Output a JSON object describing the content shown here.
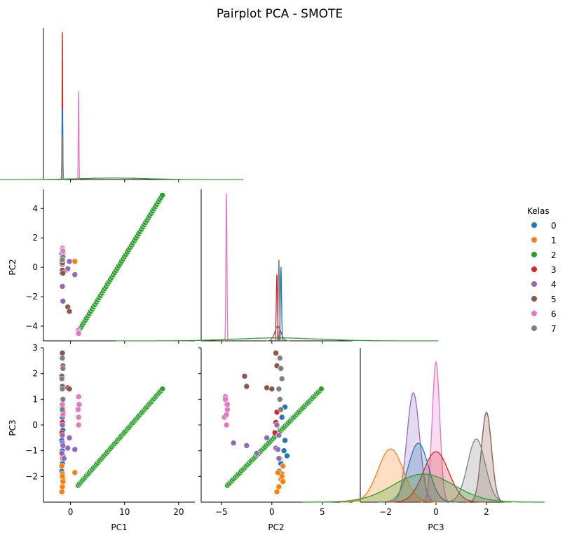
{
  "chart_data": {
    "type": "scatter",
    "title": "Pairplot PCA - SMOTE",
    "variables": [
      "PC1",
      "PC2",
      "PC3"
    ],
    "legend": {
      "title": "Kelas",
      "placement": "right",
      "classes": [
        {
          "label": "0",
          "color": "#1f77b4"
        },
        {
          "label": "1",
          "color": "#ff7f0e"
        },
        {
          "label": "2",
          "color": "#2ca02c"
        },
        {
          "label": "3",
          "color": "#d62728"
        },
        {
          "label": "4",
          "color": "#9467bd"
        },
        {
          "label": "5",
          "color": "#8c564b"
        },
        {
          "label": "6",
          "color": "#e377c2"
        },
        {
          "label": "7",
          "color": "#7f7f7f"
        }
      ]
    },
    "ranges": {
      "PC1": [
        -5,
        23
      ],
      "PC2": [
        -7,
        8
      ],
      "PC3": [
        -3,
        3
      ]
    },
    "ticks": {
      "PC1": [
        0,
        10,
        20
      ],
      "PC2": [
        -4,
        -2,
        0,
        2,
        4
      ],
      "PC2_x": [
        -5,
        0,
        5
      ],
      "PC3": [
        -2,
        -1,
        0,
        1,
        2,
        3
      ],
      "PC3_x": [
        -2,
        0,
        2
      ]
    },
    "panels": [
      {
        "row": 0,
        "col": 0,
        "kind": "kde",
        "x": "PC1"
      },
      {
        "row": 1,
        "col": 0,
        "kind": "scatter",
        "x": "PC1",
        "y": "PC2"
      },
      {
        "row": 1,
        "col": 1,
        "kind": "kde",
        "x": "PC2"
      },
      {
        "row": 2,
        "col": 0,
        "kind": "scatter",
        "x": "PC1",
        "y": "PC3"
      },
      {
        "row": 2,
        "col": 1,
        "kind": "scatter",
        "x": "PC2",
        "y": "PC3"
      },
      {
        "row": 2,
        "col": 2,
        "kind": "kde",
        "x": "PC3"
      }
    ],
    "series": [
      {
        "name": "0",
        "pc1": [
          -1.5,
          -1.5,
          -1.6,
          -1.4,
          -1.5,
          -1.5,
          -1.6,
          -1.4
        ],
        "pc2": [
          0.9,
          0.8,
          0.85,
          0.95,
          0.75,
          1.0,
          0.9,
          0.8
        ],
        "pc3": [
          -1.5,
          -1.0,
          -0.6,
          -0.2,
          0.3,
          0.7,
          -1.8,
          -1.2
        ],
        "pc2_in_pc3_panel": [
          0.9,
          1.2,
          1.3,
          0.8,
          1.0,
          1.3,
          0.7,
          1.5
        ]
      },
      {
        "name": "1",
        "pc1": [
          -1.6,
          -1.5,
          -1.4,
          -1.5,
          -1.6,
          -1.5,
          0.8,
          -1.5,
          -1.4
        ],
        "pc2": [
          0.5,
          0.6,
          0.55,
          0.45,
          0.5,
          0.6,
          0.4,
          0.5,
          0.55
        ],
        "pc3": [
          -2.6,
          -2.4,
          -2.1,
          -1.9,
          -1.6,
          -1.3,
          -1.85,
          -2.0,
          -2.2
        ],
        "pc2_in_pc3_panel": [
          0.5,
          0.7,
          0.9,
          1.0,
          1.1,
          0.8,
          0.6,
          1.0,
          1.1
        ]
      },
      {
        "name": "2",
        "line": true,
        "pc1": [
          1.4,
          17.0
        ],
        "pc2": [
          -4.4,
          4.9
        ],
        "pc3": [
          -2.35,
          1.4
        ]
      },
      {
        "name": "3",
        "pc1": [
          -1.6,
          -1.5,
          -1.4
        ],
        "pc2": [
          0.7,
          0.75,
          0.65
        ],
        "pc3": [
          -0.3,
          0.1,
          0.5
        ],
        "pc2_in_pc3_panel": [
          0.3,
          0.4,
          0.5
        ]
      },
      {
        "name": "4",
        "pc1": [
          -1.5,
          -1.4,
          -1.6,
          -0.2,
          -0.5,
          -1.2,
          0.8,
          -1.5,
          -1.5
        ],
        "pc2": [
          -1.3,
          -2.3,
          -0.4,
          0.4,
          -0.1,
          -0.3,
          -0.5,
          0.3,
          0.2
        ],
        "pc3": [
          -0.7,
          -0.8,
          -1.1,
          -0.5,
          -0.9,
          -1.3,
          -0.95,
          0.0,
          -0.4
        ],
        "pc2_in_pc3_panel": [
          -3.8,
          -2.5,
          -1.5,
          -0.5,
          0.4,
          0.7,
          0.6,
          0.5,
          0.7
        ]
      },
      {
        "name": "5",
        "pc1": [
          -1.5,
          -1.4,
          -1.6,
          -1.5,
          -0.5,
          -0.2
        ],
        "pc2": [
          -0.2,
          -0.4,
          0.4,
          0.3,
          -2.7,
          -3.0
        ],
        "pc3": [
          2.8,
          2.3,
          1.9,
          1.5,
          1.45,
          1.4
        ],
        "pc2_in_pc3_panel": [
          0.4,
          0.5,
          -2.7,
          -2.5,
          -0.5,
          0.0
        ]
      },
      {
        "name": "6",
        "pc1": [
          1.5,
          1.6,
          1.4,
          1.5,
          1.5,
          -1.5,
          -1.5,
          -1.4
        ],
        "pc2": [
          -4.4,
          -4.5,
          -4.3,
          -4.4,
          -4.5,
          1.3,
          1.2,
          1.1
        ],
        "pc3": [
          1.1,
          0.8,
          0.6,
          0.3,
          0.0,
          1.0,
          0.8,
          0.4
        ],
        "pc2_in_pc3_panel": [
          -4.6,
          -4.5,
          -4.4,
          -4.7,
          -4.5,
          -4.6,
          -4.4,
          -4.5
        ]
      },
      {
        "name": "7",
        "pc1": [
          -1.5,
          -1.4,
          -1.6,
          -1.5,
          -1.4,
          -1.5
        ],
        "pc2": [
          0.6,
          0.7,
          0.55,
          0.65,
          0.7,
          0.5
        ],
        "pc3": [
          2.6,
          2.2,
          1.8,
          1.4,
          1.0,
          0.6
        ],
        "pc2_in_pc3_panel": [
          0.8,
          0.9,
          1.0,
          0.7,
          0.8,
          0.9
        ]
      }
    ]
  }
}
